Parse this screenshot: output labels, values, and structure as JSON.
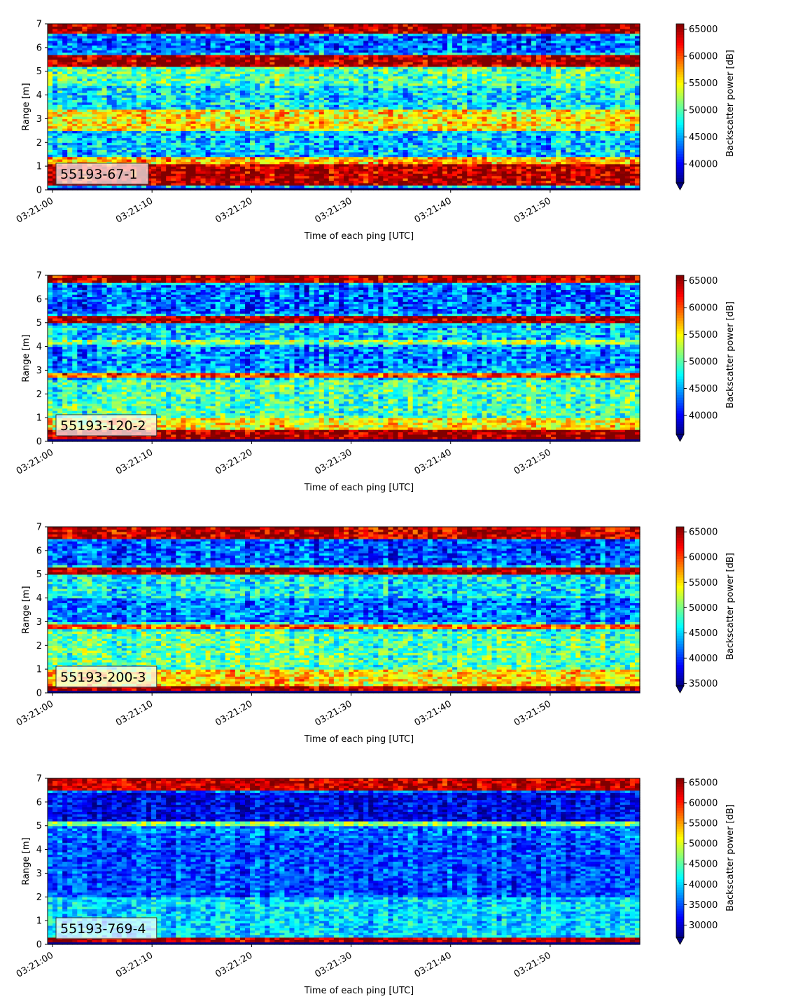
{
  "chart_data": [
    {
      "type": "heatmap",
      "panel_label": "55193-67-1",
      "xlabel": "Time of each ping [UTC]",
      "ylabel": "Range [m]",
      "colorbar_label": "Backscatter power [dB]",
      "colormap": "jet",
      "x_ticks": [
        "03:21:00",
        "03:21:10",
        "03:21:20",
        "03:21:30",
        "03:21:40",
        "03:21:50"
      ],
      "y_ticks": [
        "0",
        "1",
        "2",
        "3",
        "4",
        "5",
        "6",
        "7"
      ],
      "ylim": [
        0,
        7
      ],
      "x_range_seconds": [
        0,
        59.5
      ],
      "colorbar_ticks": [
        "40000",
        "45000",
        "50000",
        "55000",
        "60000",
        "65000"
      ],
      "clim": [
        36500,
        66000
      ],
      "colorbar_extend": "min",
      "bands": [
        {
          "range": [
            0.25,
            1.1
          ],
          "level": 64500,
          "note": "strong near-field return"
        },
        {
          "range": [
            1.1,
            1.4
          ],
          "level": 57000
        },
        {
          "range": [
            2.55,
            3.45
          ],
          "level": 55500,
          "note": "persistent layer near 3 m"
        },
        {
          "range": [
            3.45,
            4.4
          ],
          "level": 47000
        },
        {
          "range": [
            4.4,
            5.2
          ],
          "level": 50000
        },
        {
          "range": [
            5.25,
            5.65
          ],
          "level": 65000,
          "note": "strong layer near 5.4 m"
        },
        {
          "range": [
            5.8,
            6.5
          ],
          "level": 43500
        },
        {
          "range": [
            6.6,
            7.0
          ],
          "level": 65000
        }
      ]
    },
    {
      "type": "heatmap",
      "panel_label": "55193-120-2",
      "xlabel": "Time of each ping [UTC]",
      "ylabel": "Range [m]",
      "colorbar_label": "Backscatter power [dB]",
      "colormap": "jet",
      "x_ticks": [
        "03:21:00",
        "03:21:10",
        "03:21:20",
        "03:21:30",
        "03:21:40",
        "03:21:50"
      ],
      "y_ticks": [
        "0",
        "1",
        "2",
        "3",
        "4",
        "5",
        "6",
        "7"
      ],
      "ylim": [
        0,
        7
      ],
      "x_range_seconds": [
        0,
        59.5
      ],
      "colorbar_ticks": [
        "40000",
        "45000",
        "50000",
        "55000",
        "60000",
        "65000"
      ],
      "clim": [
        36500,
        66000
      ],
      "colorbar_extend": "min",
      "bands": [
        {
          "range": [
            0.1,
            0.5
          ],
          "level": 65000
        },
        {
          "range": [
            0.5,
            1.0
          ],
          "level": 55000
        },
        {
          "range": [
            1.0,
            2.6
          ],
          "level": 49500
        },
        {
          "range": [
            2.75,
            2.9
          ],
          "level": 60000,
          "note": "thin layer near 2.8 m"
        },
        {
          "range": [
            3.0,
            4.0
          ],
          "level": 44000
        },
        {
          "range": [
            4.1,
            4.3
          ],
          "level": 52000
        },
        {
          "range": [
            5.05,
            5.3
          ],
          "level": 65000
        },
        {
          "range": [
            5.4,
            6.6
          ],
          "level": 43000
        },
        {
          "range": [
            6.65,
            7.0
          ],
          "level": 64500
        }
      ]
    },
    {
      "type": "heatmap",
      "panel_label": "55193-200-3",
      "xlabel": "Time of each ping [UTC]",
      "ylabel": "Range [m]",
      "colorbar_label": "Backscatter power [dB]",
      "colormap": "jet",
      "x_ticks": [
        "03:21:00",
        "03:21:10",
        "03:21:20",
        "03:21:30",
        "03:21:40",
        "03:21:50"
      ],
      "y_ticks": [
        "0",
        "1",
        "2",
        "3",
        "4",
        "5",
        "6",
        "7"
      ],
      "ylim": [
        0,
        7
      ],
      "x_range_seconds": [
        0,
        59.5
      ],
      "colorbar_ticks": [
        "35000",
        "40000",
        "45000",
        "50000",
        "55000",
        "60000",
        "65000"
      ],
      "clim": [
        34500,
        66000
      ],
      "colorbar_extend": "min",
      "bands": [
        {
          "range": [
            0.1,
            0.35
          ],
          "level": 65000
        },
        {
          "range": [
            0.35,
            1.0
          ],
          "level": 55000
        },
        {
          "range": [
            1.0,
            2.6
          ],
          "level": 49000
        },
        {
          "range": [
            2.75,
            2.9
          ],
          "level": 59000
        },
        {
          "range": [
            3.0,
            4.0
          ],
          "level": 42000
        },
        {
          "range": [
            5.05,
            5.25
          ],
          "level": 64500
        },
        {
          "range": [
            5.4,
            6.5
          ],
          "level": 41000
        },
        {
          "range": [
            6.55,
            7.0
          ],
          "level": 64000
        }
      ]
    },
    {
      "type": "heatmap",
      "panel_label": "55193-769-4",
      "xlabel": "Time of each ping [UTC]",
      "ylabel": "Range [m]",
      "colorbar_label": "Backscatter power [dB]",
      "colormap": "jet",
      "x_ticks": [
        "03:21:00",
        "03:21:10",
        "03:21:20",
        "03:21:30",
        "03:21:40",
        "03:21:50"
      ],
      "y_ticks": [
        "0",
        "1",
        "2",
        "3",
        "4",
        "5",
        "6",
        "7"
      ],
      "ylim": [
        0,
        7
      ],
      "x_range_seconds": [
        0,
        59.5
      ],
      "colorbar_ticks": [
        "30000",
        "35000",
        "40000",
        "45000",
        "50000",
        "55000",
        "60000",
        "65000"
      ],
      "clim": [
        27000,
        66000
      ],
      "colorbar_extend": "min",
      "bands": [
        {
          "range": [
            0.15,
            0.35
          ],
          "level": 64000
        },
        {
          "range": [
            0.35,
            2.0
          ],
          "level": 40000
        },
        {
          "range": [
            2.0,
            4.5
          ],
          "level": 34500
        },
        {
          "range": [
            5.0,
            5.2
          ],
          "level": 47000
        },
        {
          "range": [
            5.2,
            6.4
          ],
          "level": 31000
        },
        {
          "range": [
            6.45,
            7.0
          ],
          "level": 63000
        }
      ]
    }
  ]
}
